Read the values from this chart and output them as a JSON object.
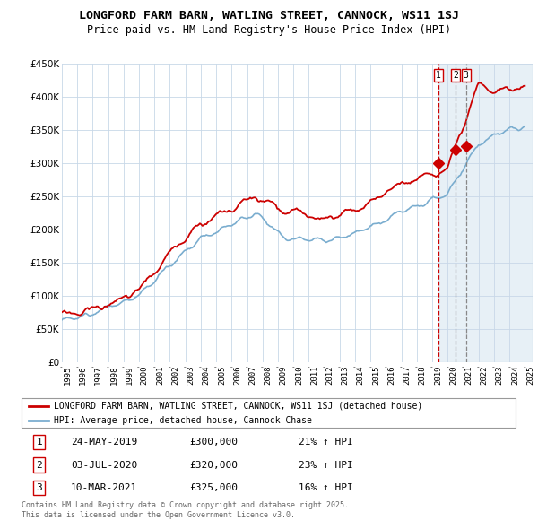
{
  "title": "LONGFORD FARM BARN, WATLING STREET, CANNOCK, WS11 1SJ",
  "subtitle": "Price paid vs. HM Land Registry's House Price Index (HPI)",
  "legend_line1": "LONGFORD FARM BARN, WATLING STREET, CANNOCK, WS11 1SJ (detached house)",
  "legend_line2": "HPI: Average price, detached house, Cannock Chase",
  "sale1_date": "24-MAY-2019",
  "sale1_price": 300000,
  "sale1_hpi": "21% ↑ HPI",
  "sale2_date": "03-JUL-2020",
  "sale2_price": 320000,
  "sale2_hpi": "23% ↑ HPI",
  "sale3_date": "10-MAR-2021",
  "sale3_price": 325000,
  "sale3_hpi": "16% ↑ HPI",
  "footer": "Contains HM Land Registry data © Crown copyright and database right 2025.\nThis data is licensed under the Open Government Licence v3.0.",
  "red_color": "#cc0000",
  "blue_color": "#7aadcf",
  "bg_color": "#ddeeff",
  "plot_bg": "#ffffff",
  "grid_color": "#c8d8e8",
  "ylim": [
    0,
    450000
  ],
  "yticks": [
    0,
    50000,
    100000,
    150000,
    200000,
    250000,
    300000,
    350000,
    400000,
    450000
  ]
}
